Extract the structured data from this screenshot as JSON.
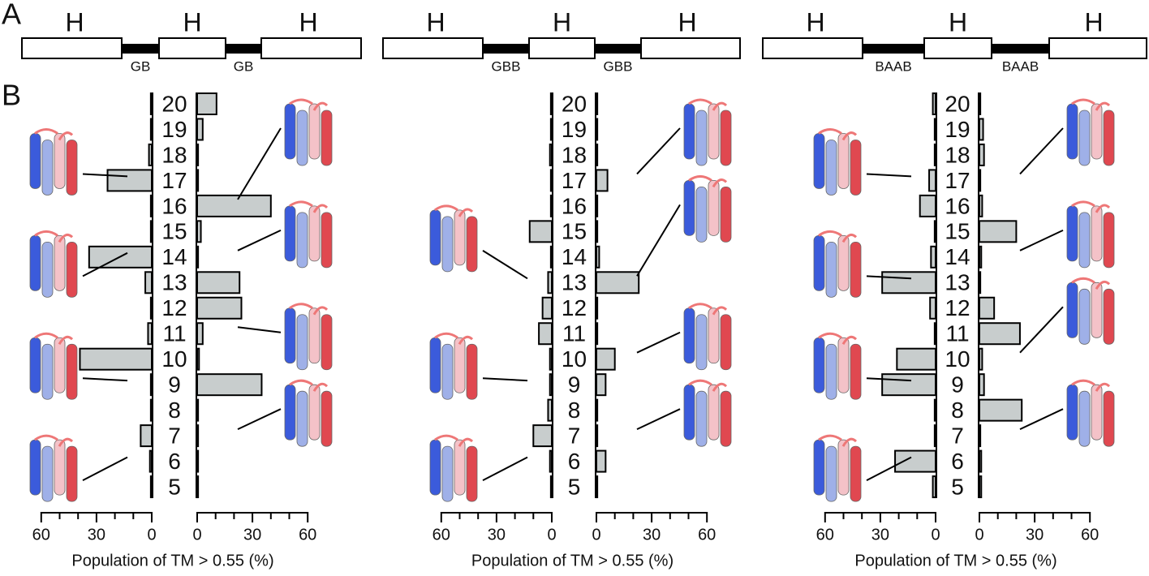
{
  "panel_labels": [
    "A",
    "B"
  ],
  "domain_diagrams": [
    {
      "helices": [
        "H",
        "H",
        "H"
      ],
      "linkers": [
        "GB",
        "GB"
      ]
    },
    {
      "helices": [
        "H",
        "H",
        "H"
      ],
      "linkers": [
        "GBB",
        "GBB"
      ]
    },
    {
      "helices": [
        "H",
        "H",
        "H"
      ],
      "linkers": [
        "BAAB",
        "BAAB"
      ]
    }
  ],
  "chart_data": [
    {
      "type": "butterfly",
      "categories": [
        "20",
        "19",
        "18",
        "17",
        "16",
        "15",
        "14",
        "13",
        "12",
        "11",
        "10",
        "9",
        "8",
        "7",
        "6",
        "5"
      ],
      "series": [
        {
          "side": "left",
          "color": "#c8cdcd",
          "values": [
            0.5,
            0.5,
            1.5,
            24,
            0.5,
            0.5,
            34,
            3.5,
            0.5,
            2,
            39,
            0.5,
            0.5,
            6,
            1,
            0.5
          ]
        },
        {
          "side": "right",
          "color": "#c8cdcd",
          "values": [
            10.5,
            3,
            0.5,
            0.5,
            40,
            2,
            0.5,
            23,
            24,
            3,
            1,
            35,
            0.5,
            0.5,
            0.5,
            0.5
          ]
        }
      ],
      "xlim": [
        0,
        60
      ],
      "xticks": [
        0,
        30,
        60
      ],
      "xminorticks": [
        10,
        20,
        40,
        50
      ],
      "xlabel": "Population of TM > 0.55 (%)"
    },
    {
      "type": "butterfly",
      "categories": [
        "20",
        "19",
        "18",
        "17",
        "16",
        "15",
        "14",
        "13",
        "12",
        "11",
        "10",
        "9",
        "8",
        "7",
        "6",
        "5"
      ],
      "series": [
        {
          "side": "left",
          "color": "#c8cdcd",
          "values": [
            0.5,
            0.5,
            1,
            0.5,
            0.5,
            12,
            0.5,
            2,
            5,
            7,
            1,
            1,
            2,
            10,
            1,
            0.5
          ]
        },
        {
          "side": "right",
          "color": "#c8cdcd",
          "values": [
            0.5,
            0.5,
            0.5,
            6,
            0.5,
            0.5,
            1.5,
            23,
            0.5,
            0.5,
            10,
            5,
            0.5,
            0.5,
            5,
            0.5
          ]
        }
      ],
      "xlim": [
        0,
        60
      ],
      "xticks": [
        0,
        30,
        60
      ],
      "xminorticks": [
        10,
        20,
        40,
        50
      ],
      "xlabel": "Population of TM > 0.55 (%)"
    },
    {
      "type": "butterfly",
      "categories": [
        "20",
        "19",
        "18",
        "17",
        "16",
        "15",
        "14",
        "13",
        "12",
        "11",
        "10",
        "9",
        "8",
        "7",
        "6",
        "5"
      ],
      "series": [
        {
          "side": "left",
          "color": "#c8cdcd",
          "values": [
            1.5,
            0.5,
            0.5,
            3.5,
            8.5,
            0.5,
            2.5,
            29,
            3,
            0.5,
            21,
            29,
            0.5,
            0.5,
            22,
            1.5
          ]
        },
        {
          "side": "right",
          "color": "#c8cdcd",
          "values": [
            0.5,
            2,
            2.5,
            0.5,
            1.5,
            20,
            1,
            0.5,
            8,
            22,
            1.5,
            2.5,
            23,
            0.5,
            1,
            1
          ]
        }
      ],
      "xlim": [
        0,
        60
      ],
      "xticks": [
        0,
        30,
        60
      ],
      "xminorticks": [
        10,
        20,
        40,
        50
      ],
      "xlabel": "Population of TM > 0.55 (%)"
    }
  ]
}
